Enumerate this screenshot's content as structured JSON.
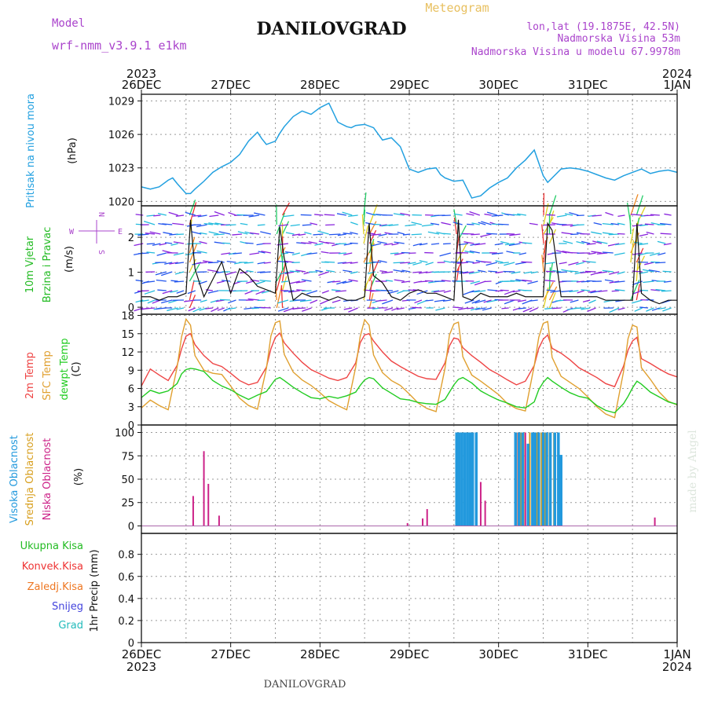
{
  "header": {
    "model_label": "Model",
    "model_name": "wrf-nmm_v3.9.1  e1km",
    "title": "DANILOVGRAD",
    "subtitle": "Meteogram",
    "lonlat": "lon,lat (19.1875E, 42.5N)",
    "elevation": "Nadmorska Visina 53m",
    "model_elevation": "Nadmorska Visina u modelu 67.9978m"
  },
  "footer": {
    "station": "DANILOVGRAD",
    "credit": "made by Angel"
  },
  "time_axis": {
    "labels": [
      "26DEC",
      "27DEC",
      "28DEC",
      "29DEC",
      "30DEC",
      "31DEC",
      "1JAN"
    ],
    "year_start": "2023",
    "year_end": "2024"
  },
  "colors": {
    "pressure": "#22a0e0",
    "temp2m": "#ee4444",
    "sfc_temp": "#e0a030",
    "dewpt": "#22cc22",
    "high_cloud": "#2299dd",
    "mid_cloud": "#d8a020",
    "low_cloud": "#cc2288",
    "wind_label": "#22bb22",
    "compass": "#aa44cc"
  },
  "chart_data": [
    {
      "type": "line",
      "panel": "pressure",
      "ylabel_lines": [
        "Pritisak na nivou mora",
        "(hPa)"
      ],
      "ylim": [
        1019.6,
        1029.6
      ],
      "yticks": [
        1020,
        1023,
        1026,
        1029
      ],
      "grid": true,
      "x_days": [
        0,
        0.1,
        0.2,
        0.3,
        0.35,
        0.4,
        0.5,
        0.55,
        0.6,
        0.7,
        0.8,
        0.9,
        1.0,
        1.1,
        1.2,
        1.3,
        1.35,
        1.4,
        1.5,
        1.55,
        1.6,
        1.7,
        1.8,
        1.9,
        2.0,
        2.1,
        2.2,
        2.3,
        2.35,
        2.4,
        2.5,
        2.6,
        2.7,
        2.8,
        2.9,
        3.0,
        3.1,
        3.2,
        3.3,
        3.35,
        3.4,
        3.5,
        3.6,
        3.7,
        3.8,
        3.9,
        4.0,
        4.1,
        4.2,
        4.3,
        4.4,
        4.5,
        4.55,
        4.6,
        4.7,
        4.8,
        4.9,
        5.0,
        5.1,
        5.2,
        5.3,
        5.4,
        5.5,
        5.6,
        5.7,
        5.8,
        5.9,
        6.0
      ],
      "series": [
        {
          "values": [
            1021.3,
            1021.1,
            1021.3,
            1021.9,
            1022.1,
            1021.6,
            1020.7,
            1020.7,
            1021.1,
            1021.8,
            1022.6,
            1023.1,
            1023.5,
            1024.2,
            1025.4,
            1026.2,
            1025.6,
            1025.1,
            1025.4,
            1026.1,
            1026.7,
            1027.6,
            1028.1,
            1027.8,
            1028.4,
            1028.8,
            1027.1,
            1026.7,
            1026.6,
            1026.8,
            1026.9,
            1026.6,
            1025.5,
            1025.7,
            1024.9,
            1022.9,
            1022.6,
            1022.9,
            1023.0,
            1022.4,
            1022.1,
            1021.8,
            1021.9,
            1020.3,
            1020.5,
            1021.2,
            1021.7,
            1022.1,
            1023.0,
            1023.7,
            1024.6,
            1022.3,
            1021.7,
            1022.1,
            1022.9,
            1023.0,
            1022.9,
            1022.7,
            1022.4,
            1022.1,
            1021.9,
            1022.3,
            1022.6,
            1022.9,
            1022.5,
            1022.7,
            1022.8,
            1022.6
          ]
        }
      ]
    },
    {
      "type": "line",
      "panel": "wind",
      "ylabel_lines": [
        "10m Vjetar",
        "Brzina i Pravac",
        "(m/s)"
      ],
      "compass": {
        "n": "N",
        "s": "S",
        "w": "W",
        "e": "E"
      },
      "ylim": [
        -0.2,
        2.9
      ],
      "yticks": [
        0,
        1,
        2
      ],
      "grid": true,
      "x_days": [
        0,
        0.1,
        0.2,
        0.3,
        0.4,
        0.5,
        0.55,
        0.6,
        0.7,
        0.8,
        0.9,
        1.0,
        1.1,
        1.2,
        1.3,
        1.4,
        1.5,
        1.55,
        1.6,
        1.7,
        1.8,
        1.9,
        2.0,
        2.1,
        2.2,
        2.3,
        2.4,
        2.5,
        2.55,
        2.6,
        2.7,
        2.8,
        2.9,
        3.0,
        3.1,
        3.2,
        3.3,
        3.4,
        3.5,
        3.55,
        3.6,
        3.7,
        3.8,
        3.9,
        4.0,
        4.1,
        4.2,
        4.3,
        4.4,
        4.5,
        4.55,
        4.6,
        4.7,
        4.8,
        4.9,
        5.0,
        5.1,
        5.2,
        5.3,
        5.4,
        5.5,
        5.55,
        5.6,
        5.7,
        5.8,
        5.9,
        6.0
      ],
      "series": [
        {
          "values": [
            0.3,
            0.3,
            0.2,
            0.3,
            0.3,
            0.4,
            2.5,
            1.1,
            0.3,
            0.8,
            1.3,
            0.4,
            1.1,
            0.9,
            0.6,
            0.5,
            0.4,
            2.3,
            1.4,
            0.2,
            0.4,
            0.3,
            0.3,
            0.2,
            0.3,
            0.2,
            0.2,
            0.3,
            2.4,
            0.9,
            0.7,
            0.3,
            0.2,
            0.4,
            0.5,
            0.4,
            0.4,
            0.3,
            0.2,
            2.5,
            0.3,
            0.2,
            0.4,
            0.3,
            0.3,
            0.3,
            0.4,
            0.3,
            0.3,
            0.3,
            2.4,
            2.2,
            0.3,
            0.3,
            0.3,
            0.3,
            0.3,
            0.2,
            0.2,
            0.2,
            0.2,
            2.4,
            0.4,
            0.2,
            0.1,
            0.2,
            0.2
          ]
        }
      ]
    },
    {
      "type": "line",
      "panel": "temperature",
      "ylabel_lines": [
        "2m Temp",
        "SFC Temp",
        "dewpt Temp",
        "(C)"
      ],
      "ylim": [
        0,
        18.2
      ],
      "yticks": [
        0,
        3,
        6,
        9,
        12,
        15,
        18
      ],
      "grid": true,
      "x_days": [
        0,
        0.1,
        0.2,
        0.3,
        0.4,
        0.45,
        0.5,
        0.55,
        0.6,
        0.7,
        0.8,
        0.9,
        1.0,
        1.1,
        1.2,
        1.3,
        1.4,
        1.45,
        1.5,
        1.55,
        1.6,
        1.7,
        1.8,
        1.9,
        2.0,
        2.1,
        2.2,
        2.3,
        2.4,
        2.45,
        2.5,
        2.55,
        2.6,
        2.7,
        2.8,
        2.9,
        3.0,
        3.1,
        3.2,
        3.3,
        3.4,
        3.45,
        3.5,
        3.55,
        3.6,
        3.7,
        3.8,
        3.9,
        4.0,
        4.1,
        4.2,
        4.3,
        4.4,
        4.45,
        4.5,
        4.55,
        4.6,
        4.7,
        4.8,
        4.9,
        5.0,
        5.1,
        5.2,
        5.3,
        5.4,
        5.45,
        5.5,
        5.55,
        5.6,
        5.7,
        5.8,
        5.9,
        6.0
      ],
      "series": [
        {
          "name": "2m Temp",
          "color": "#ee4444",
          "values": [
            6.4,
            9.2,
            8.2,
            7.3,
            9.8,
            12.5,
            14.6,
            15.0,
            13.2,
            11.4,
            10.1,
            9.6,
            8.5,
            7.3,
            6.6,
            7.0,
            9.5,
            12.5,
            14.4,
            15.1,
            13.5,
            11.8,
            10.3,
            9.1,
            8.4,
            7.7,
            7.3,
            7.8,
            10.2,
            13.5,
            14.8,
            15.0,
            13.8,
            12.0,
            10.5,
            9.6,
            8.8,
            8.0,
            7.6,
            7.5,
            10.2,
            13.0,
            14.3,
            14.1,
            12.7,
            11.4,
            10.3,
            9.1,
            8.3,
            7.4,
            6.6,
            7.2,
            9.8,
            12.6,
            14.1,
            14.8,
            12.6,
            11.8,
            10.7,
            9.4,
            8.6,
            7.8,
            6.8,
            6.3,
            9.7,
            12.3,
            13.8,
            14.4,
            10.9,
            10.1,
            9.2,
            8.4,
            7.9
          ]
        },
        {
          "name": "SFC Temp",
          "color": "#e0a030",
          "values": [
            2.8,
            4.1,
            3.2,
            2.5,
            9.5,
            14.5,
            17.4,
            16.4,
            11.4,
            9.0,
            8.5,
            8.3,
            6.4,
            4.4,
            3.2,
            2.6,
            9.3,
            14.6,
            16.8,
            17.1,
            11.6,
            8.7,
            7.4,
            6.5,
            5.3,
            4.0,
            3.2,
            2.5,
            9.5,
            14.5,
            17.3,
            16.4,
            11.5,
            8.6,
            7.3,
            6.5,
            5.1,
            3.6,
            2.7,
            2.2,
            9.3,
            14.8,
            16.6,
            16.9,
            11.2,
            8.2,
            7.2,
            6.1,
            5.0,
            3.5,
            2.7,
            2.3,
            9.8,
            14.4,
            16.7,
            17.0,
            11.1,
            8.0,
            7.0,
            6.0,
            4.6,
            3.0,
            1.8,
            1.2,
            8.8,
            14.2,
            16.4,
            16.1,
            9.4,
            7.5,
            5.4,
            3.9,
            3.3
          ]
        },
        {
          "name": "dewpt Temp",
          "color": "#22cc22",
          "values": [
            4.5,
            5.7,
            5.2,
            5.6,
            6.8,
            8.4,
            9.1,
            9.3,
            9.2,
            8.8,
            7.3,
            6.4,
            5.8,
            4.9,
            4.2,
            4.9,
            5.5,
            6.5,
            7.5,
            7.8,
            7.3,
            6.2,
            5.3,
            4.5,
            4.3,
            4.7,
            4.4,
            4.8,
            5.4,
            6.5,
            7.4,
            7.8,
            7.6,
            6.1,
            5.2,
            4.3,
            4.1,
            3.7,
            3.5,
            3.4,
            4.2,
            5.4,
            6.6,
            7.5,
            7.8,
            6.9,
            5.6,
            4.8,
            4.1,
            3.6,
            3.0,
            2.8,
            3.8,
            5.8,
            7.0,
            7.8,
            7.2,
            6.2,
            5.3,
            4.7,
            4.4,
            3.2,
            2.4,
            2.0,
            3.5,
            4.7,
            6.1,
            7.2,
            6.7,
            5.4,
            4.6,
            3.8,
            3.4
          ]
        }
      ]
    },
    {
      "type": "bar",
      "panel": "cloud",
      "ylabel_lines": [
        "Visoka Oblacnost",
        "Srednja Oblacnost",
        "Niska Oblacnost",
        "(%)"
      ],
      "ylim": [
        -8,
        108
      ],
      "yticks": [
        0,
        25,
        50,
        75,
        100
      ],
      "grid": true,
      "series": [
        {
          "name": "Niska Oblacnost",
          "color": "#cc2288",
          "x_days": [
            0.58,
            0.7,
            0.75,
            0.87,
            2.98,
            3.15,
            3.2,
            3.8,
            3.85,
            4.22,
            4.3,
            4.35,
            4.45,
            5.75
          ],
          "values": [
            32,
            80,
            45,
            11,
            3,
            8,
            18,
            47,
            27,
            100,
            100,
            75,
            100,
            9
          ]
        },
        {
          "name": "Srednja Oblacnost",
          "color": "#d8a020",
          "x_days": [
            4.2,
            4.25,
            4.28,
            4.35,
            4.43,
            4.48,
            4.52,
            4.57,
            4.62
          ],
          "values": [
            100,
            100,
            100,
            100,
            100,
            100,
            100,
            100,
            100
          ]
        },
        {
          "name": "Visoka Oblacnost",
          "color": "#2299dd",
          "x_days": [
            3.53,
            3.56,
            3.59,
            3.62,
            3.65,
            3.68,
            3.71,
            3.75,
            4.19,
            4.23,
            4.27,
            4.33,
            4.38,
            4.41,
            4.45,
            4.5,
            4.54,
            4.58,
            4.63,
            4.67,
            4.7
          ],
          "values": [
            100,
            100,
            100,
            100,
            100,
            100,
            100,
            100,
            100,
            100,
            100,
            88,
            100,
            100,
            100,
            100,
            100,
            100,
            100,
            100,
            76
          ]
        }
      ]
    },
    {
      "type": "bar",
      "panel": "precip",
      "ylabel_lines": [
        "1hr Precip (mm)"
      ],
      "legend": [
        {
          "name": "Ukupna Kisa",
          "color": "#22bb22"
        },
        {
          "name": "Konvek.Kisa",
          "color": "#ee3333"
        },
        {
          "name": "Zaledj.Kisa",
          "color": "#ee7722"
        },
        {
          "name": "Snijeg",
          "color": "#4444dd"
        },
        {
          "name": "Grad",
          "color": "#22bbbb"
        }
      ],
      "ylim": [
        0,
        0.99
      ],
      "yticks": [
        0,
        0.2,
        0.4,
        0.6,
        0.8
      ],
      "grid": true,
      "series": []
    }
  ]
}
